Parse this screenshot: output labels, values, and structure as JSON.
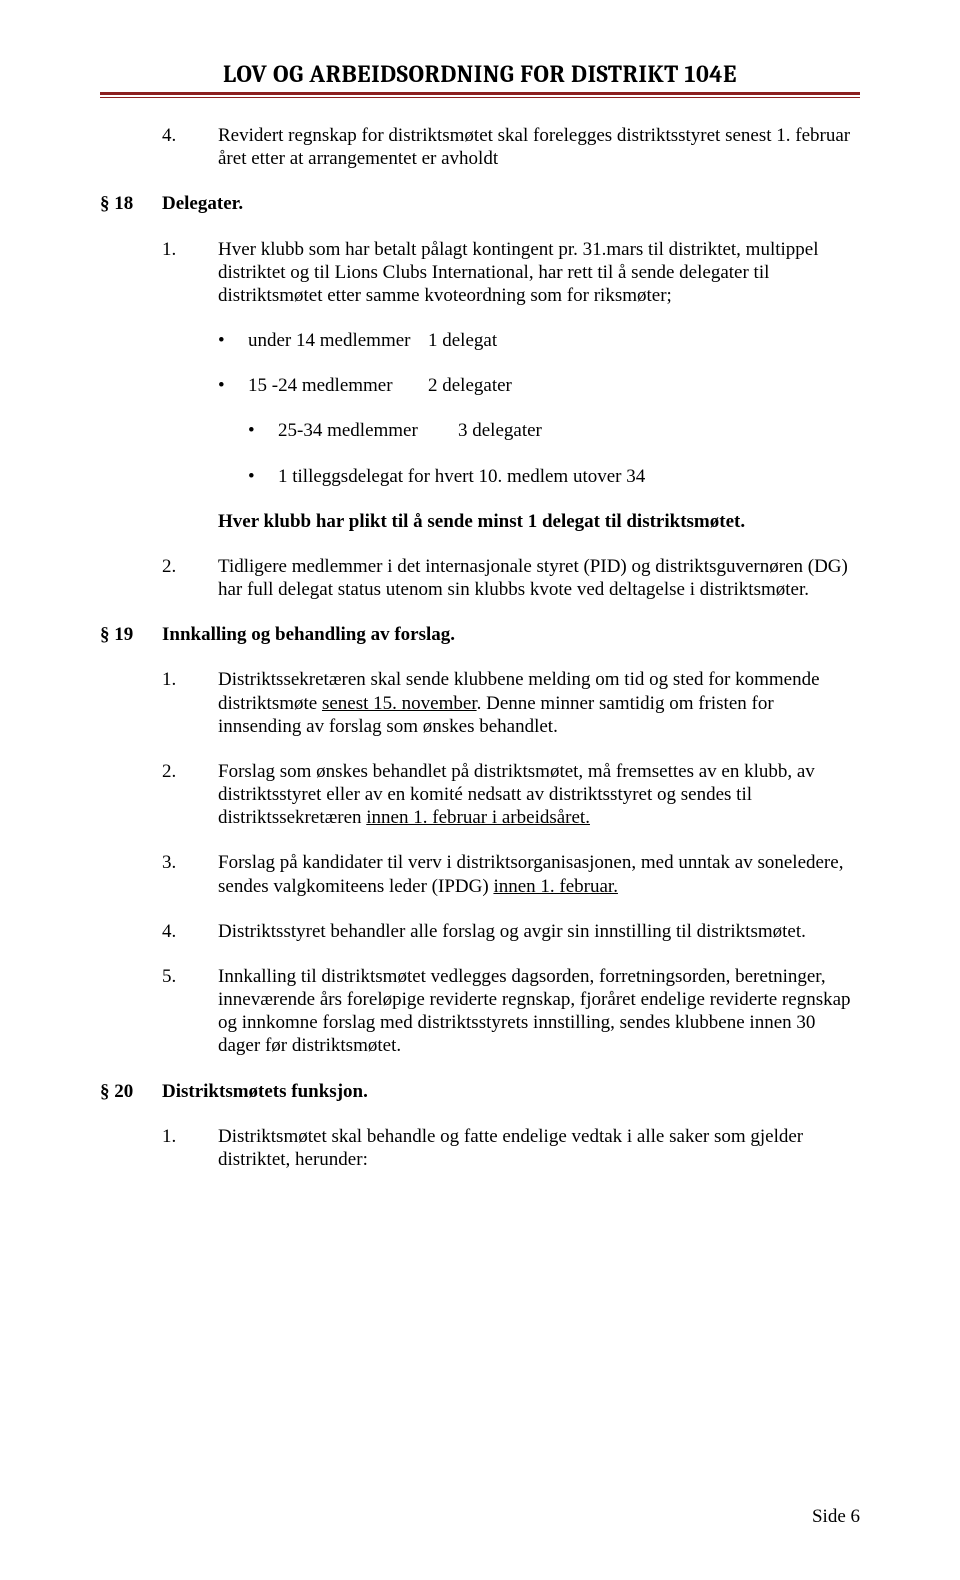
{
  "header": {
    "title": "LOV OG ARBEIDSORDNING FOR DISTRIKT 104E"
  },
  "items": {
    "p4": {
      "num": "4.",
      "text": "Revidert regnskap for distriktsmøtet skal forelegges distriktsstyret senest 1. februar året etter at arrangementet er avholdt"
    },
    "s18": {
      "section": "§ 18",
      "heading": "Delegater."
    },
    "s18_1_a": "Hver klubb som har betalt pålagt kontingent pr. 31.mars til distriktet, multippel distriktet og til Lions Clubs International, har rett til å sende delegater til distriktsmøtet etter samme kvoteordning som for riksmøter;",
    "s18_1_num": "1.",
    "bullets": {
      "b1": {
        "label": "under 14 medlemmer",
        "val": "1 delegat"
      },
      "b2": {
        "label": "15 -24 medlemmer",
        "val": "2 delegater"
      },
      "b3": {
        "label": "25-34 medlemmer",
        "val": "3 delegater"
      },
      "b4": "1 tilleggsdelegat for hvert 10. medlem utover 34"
    },
    "s18_bold": "Hver klubb har plikt til å sende minst 1 delegat til distriktsmøtet.",
    "s18_2": {
      "num": "2.",
      "text": "Tidligere medlemmer i det internasjonale styret (PID) og distriktsguvernøren (DG) har full delegat status utenom sin klubbs kvote ved deltagelse i distriktsmøter."
    },
    "s19": {
      "section": "§ 19",
      "heading": "Innkalling og behandling av forslag."
    },
    "s19_1": {
      "num": "1.",
      "pre": "Distriktssekretæren skal sende klubbene melding om tid og sted for kommende distriktsmøte ",
      "u": "senest 15. november",
      "post": ". Denne minner samtidig om fristen for innsending av forslag som ønskes behandlet."
    },
    "s19_2": {
      "num": "2.",
      "pre": "Forslag som ønskes behandlet på distriktsmøtet, må fremsettes av en klubb, av distriktsstyret eller av en komité nedsatt av distriktsstyret og sendes til distriktssekretæren ",
      "u": "innen 1. februar i arbeidsåret."
    },
    "s19_3": {
      "num": "3.",
      "pre": "Forslag på kandidater til verv i distriktsorganisasjonen, med unntak av soneledere, sendes valgkomiteens leder (IPDG) ",
      "u": "innen 1. februar."
    },
    "s19_4": {
      "num": "4.",
      "text": "Distriktsstyret behandler alle forslag og avgir sin innstilling til distriktsmøtet."
    },
    "s19_5": {
      "num": "5.",
      "text": "Innkalling til distriktsmøtet vedlegges dagsorden, forretningsorden, beretninger, inneværende års foreløpige reviderte regnskap, fjoråret endelige reviderte regnskap og innkomne forslag med distriktsstyrets innstilling, sendes klubbene innen 30 dager før distriktsmøtet."
    },
    "s20": {
      "section": "§ 20",
      "heading": "Distriktsmøtets funksjon."
    },
    "s20_1": {
      "num": "1.",
      "text": "Distriktsmøtet skal behandle og fatte endelige vedtak i alle saker som gjelder distriktet, herunder:"
    }
  },
  "footer": {
    "text": "Side 6"
  }
}
